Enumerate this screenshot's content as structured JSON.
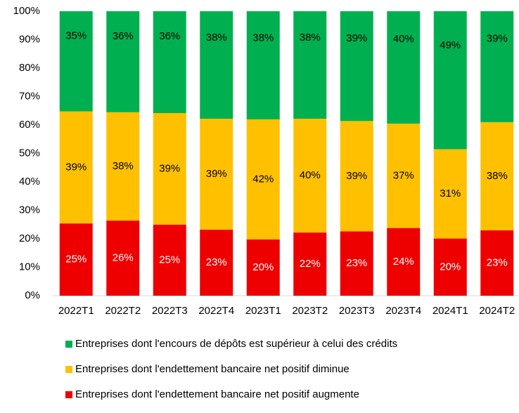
{
  "chart_data": {
    "type": "bar",
    "stacked": true,
    "categories": [
      "2022T1",
      "2022T2",
      "2022T3",
      "2022T4",
      "2023T1",
      "2023T2",
      "2023T3",
      "2023T4",
      "2024T1",
      "2024T2"
    ],
    "series": [
      {
        "name": "Entreprises dont l'endettement bancaire net positif augmente",
        "color": "#ee0000",
        "values": [
          25.4,
          26.4,
          25.0,
          23.2,
          19.8,
          22.2,
          22.6,
          23.8,
          20.1,
          23.0
        ],
        "value_labels": [
          "25%",
          "26%",
          "25%",
          "23%",
          "20%",
          "22%",
          "23%",
          "24%",
          "20%",
          "23%"
        ]
      },
      {
        "name": "Entreprises dont l'endettement bancaire net positif diminue",
        "color": "#ffc000",
        "values": [
          39.4,
          38.1,
          39.2,
          39.0,
          42.2,
          40.0,
          38.8,
          36.7,
          31.4,
          38.0
        ],
        "value_labels": [
          "39%",
          "38%",
          "39%",
          "39%",
          "42%",
          "40%",
          "39%",
          "37%",
          "31%",
          "38%"
        ]
      },
      {
        "name": "Entreprises dont l'encours de dépôts est supérieur à celui des crédits",
        "color": "#00b050",
        "values": [
          35.2,
          35.5,
          35.8,
          37.8,
          38.0,
          37.8,
          38.6,
          39.5,
          48.5,
          39.0
        ],
        "value_labels": [
          "35%",
          "36%",
          "36%",
          "38%",
          "38%",
          "38%",
          "39%",
          "40%",
          "49%",
          "39%"
        ]
      }
    ],
    "ylim": [
      0,
      100
    ],
    "yticks": [
      {
        "value": 0,
        "label": "0%"
      },
      {
        "value": 10,
        "label": "10%"
      },
      {
        "value": 20,
        "label": "20%"
      },
      {
        "value": 30,
        "label": "30%"
      },
      {
        "value": 40,
        "label": "40%"
      },
      {
        "value": 50,
        "label": "50%"
      },
      {
        "value": 60,
        "label": "60%"
      },
      {
        "value": 70,
        "label": "70%"
      },
      {
        "value": 80,
        "label": "80%"
      },
      {
        "value": 90,
        "label": "90%"
      },
      {
        "value": 100,
        "label": "100%"
      }
    ],
    "grid": false
  }
}
